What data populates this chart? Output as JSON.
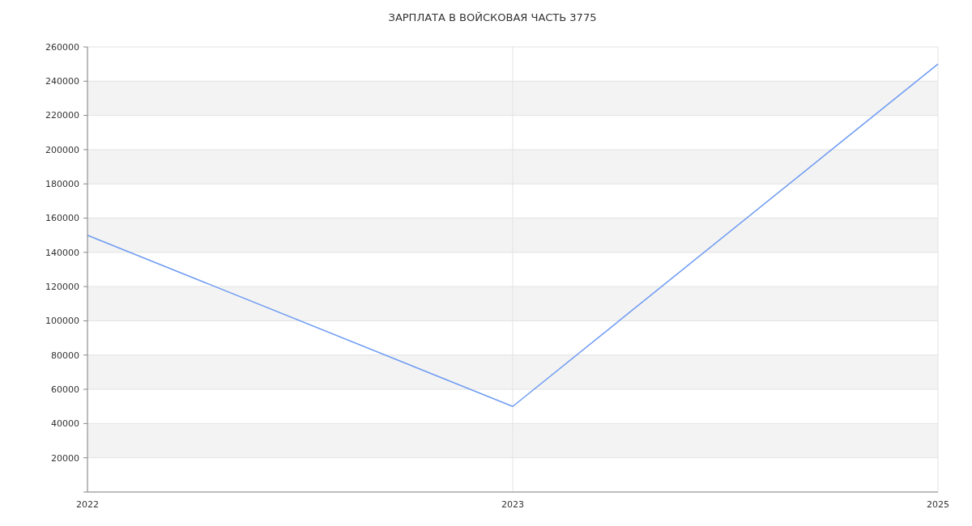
{
  "chart_data": {
    "type": "line",
    "title": "ЗАРПЛАТА В ВОЙСКОВАЯ ЧАСТЬ 3775",
    "categories": [
      "2022",
      "2023",
      "2025"
    ],
    "series": [
      {
        "color": "#6f9cf2",
        "values": [
          150000,
          50000,
          250000
        ]
      }
    ],
    "ylim": [
      0,
      260000
    ],
    "yticks": [
      {
        "value": 0,
        "label": null
      },
      20000,
      40000,
      60000,
      80000,
      100000,
      120000,
      140000,
      160000,
      180000,
      200000,
      220000,
      240000,
      260000
    ],
    "grid": true,
    "marker": "none",
    "line_style": "solid"
  }
}
